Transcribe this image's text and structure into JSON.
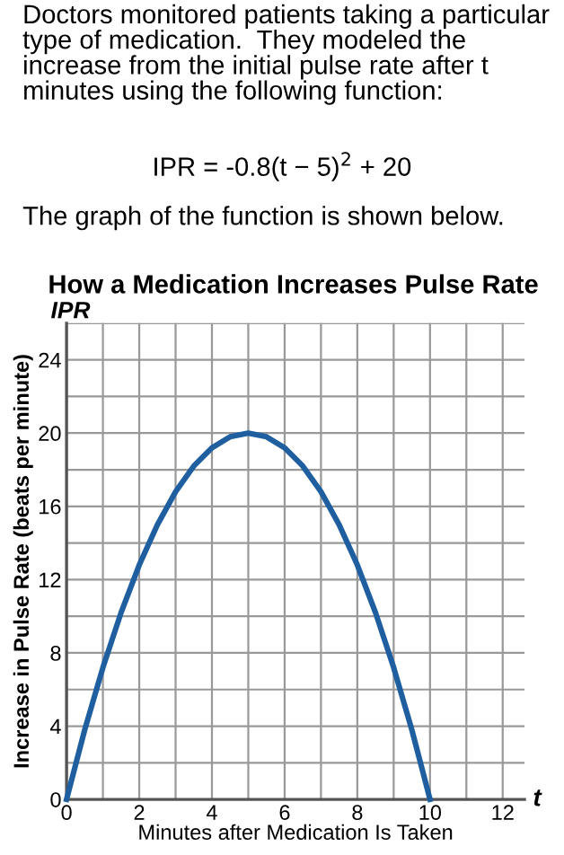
{
  "chart_data": {
    "type": "line",
    "title": "How a Medication Increases Pulse Rate",
    "annotations": [
      "Doctors monitored patients taking a particular type of medication.  They modeled the increase from the initial pulse rate after t minutes using the following function:",
      "IPR = -0.8(t − 5)$^{2}$ + 20",
      "The graph of the function is shown below.",
      "IPR",
      "t"
    ],
    "xlabel": "Minutes after Medication Is Taken",
    "ylabel": "Increase in Pulse Rate (beats per minute)",
    "x": [
      0,
      0.5,
      1,
      1.5,
      2,
      2.5,
      3,
      3.5,
      4,
      4.5,
      5,
      5.5,
      6,
      6.5,
      7,
      7.5,
      8,
      8.5,
      9,
      9.5,
      10
    ],
    "series": [
      {
        "color": "#1f5fa0",
        "values": [
          0,
          3.8,
          7.2,
          10.2,
          12.8,
          15,
          16.8,
          18.2,
          19.2,
          19.8,
          20,
          19.8,
          19.2,
          18.2,
          16.8,
          15,
          12.8,
          10.2,
          7.2,
          3.8,
          0
        ]
      }
    ],
    "xlim": [
      0,
      12.6
    ],
    "ylim": [
      0,
      26
    ],
    "xticks": [
      0,
      {
        "value": 1,
        "label": null
      },
      2,
      {
        "value": 3,
        "label": null
      },
      4,
      {
        "value": 5,
        "label": null
      },
      6,
      {
        "value": 7,
        "label": null
      },
      8,
      {
        "value": 9,
        "label": null
      },
      10,
      {
        "value": 11,
        "label": null
      },
      12
    ],
    "yticks": [
      0,
      {
        "value": 2,
        "label": null
      },
      4,
      {
        "value": 6,
        "label": null
      },
      8,
      {
        "value": 10,
        "label": null
      },
      12,
      {
        "value": 14,
        "label": null
      },
      16,
      {
        "value": 18,
        "label": null
      },
      20,
      {
        "value": 22,
        "label": null
      },
      24,
      {
        "value": 26,
        "label": null
      }
    ],
    "grid": true,
    "marker": "none",
    "line_style": "solid",
    "legend": false
  }
}
